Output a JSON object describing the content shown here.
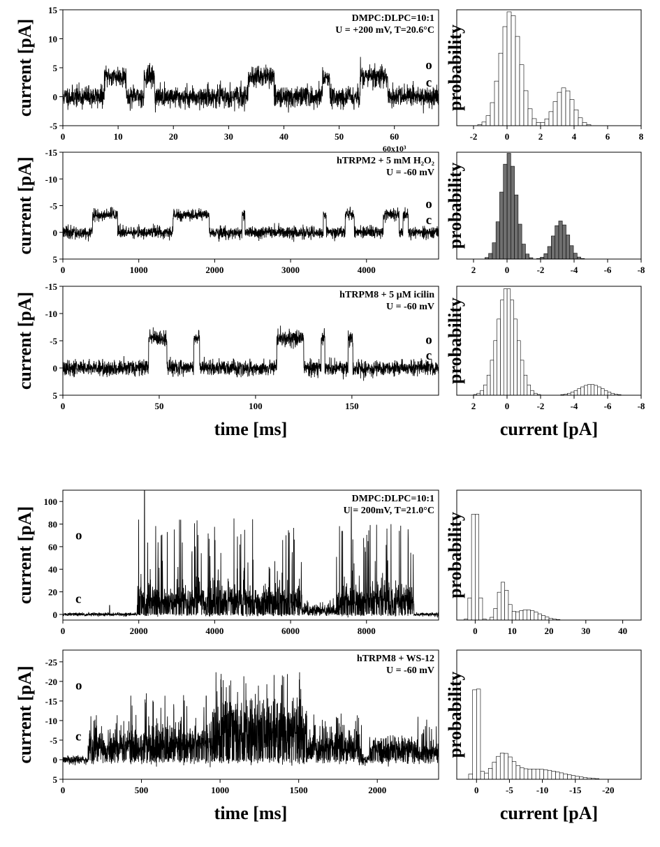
{
  "chart_data": [
    {
      "type": "line",
      "panel": "trace-dmpc-1",
      "annotation": [
        "DMPC:DLPC=10:1",
        "U = +200 mV, T=20.6°C"
      ],
      "ylabel": "current [pA]",
      "xlabel": "",
      "xlim": [
        0,
        68000
      ],
      "ylim": [
        -5,
        15
      ],
      "y_inverted": false,
      "x_ticks": [
        0,
        10,
        20,
        30,
        40,
        50,
        60
      ],
      "x_tick_labels": [
        "0",
        "10",
        "20",
        "30",
        "40",
        "50",
        "60"
      ],
      "x_multiplier": "60x10³",
      "y_ticks": [
        -5,
        0,
        5,
        10,
        15
      ],
      "y_tick_labels": [
        "-5",
        "0",
        "5",
        "10",
        "15"
      ],
      "open_level": 3.5,
      "closed_level": 0,
      "noise": 0.9,
      "open_intervals": [
        [
          7500,
          11500
        ],
        [
          14700,
          16600
        ],
        [
          33500,
          38200
        ],
        [
          47000,
          48300
        ],
        [
          53800,
          58800
        ]
      ],
      "state_labels": {
        "open": "o",
        "closed": "c"
      },
      "state_label_values": {
        "open": 5.5,
        "closed": 2.5
      },
      "seed": 11
    },
    {
      "type": "bar",
      "panel": "hist-dmpc-1",
      "ylabel": "probability",
      "xlabel": "",
      "xlim": [
        -3,
        8
      ],
      "ylim": [
        0,
        1
      ],
      "x_ticks": [
        -2,
        0,
        2,
        4,
        6,
        8
      ],
      "x_tick_labels": [
        "-2",
        "0",
        "2",
        "4",
        "6",
        "8"
      ],
      "style": "open",
      "bin_width": 0.25,
      "peaks": [
        {
          "center": 0.2,
          "sigma": 0.6,
          "height": 1.0
        },
        {
          "center": 3.4,
          "sigma": 0.55,
          "height": 0.33
        }
      ]
    },
    {
      "type": "line",
      "panel": "trace-htrpm2",
      "annotation": [
        "hTRPM2 + 5 mM H₂O₂",
        "U = -60 mV"
      ],
      "ylabel": "current [pA]",
      "xlabel": "",
      "xlim": [
        0,
        4950
      ],
      "ylim": [
        -15,
        5
      ],
      "y_inverted": true,
      "x_ticks": [
        0,
        1000,
        2000,
        3000,
        4000
      ],
      "x_tick_labels": [
        "0",
        "1000",
        "2000",
        "3000",
        "4000"
      ],
      "y_ticks": [
        -15,
        -10,
        -5,
        0,
        5
      ],
      "y_tick_labels": [
        "-15",
        "-10",
        "-5",
        "0",
        "5"
      ],
      "open_level": -3.3,
      "closed_level": 0,
      "noise": 0.55,
      "open_intervals": [
        [
          390,
          720
        ],
        [
          1450,
          1930
        ],
        [
          2360,
          2400
        ],
        [
          3430,
          3470
        ],
        [
          3720,
          3840
        ],
        [
          4220,
          4430
        ],
        [
          4480,
          4550
        ]
      ],
      "state_labels": {
        "open": "o",
        "closed": "c"
      },
      "state_label_values": {
        "open": -5.3,
        "closed": -2.3
      },
      "seed": 23
    },
    {
      "type": "bar",
      "panel": "hist-htrpm2",
      "ylabel": "probability",
      "xlabel": "",
      "xlim": [
        3,
        -8
      ],
      "ylim": [
        0,
        1
      ],
      "x_ticks": [
        2,
        0,
        -2,
        -4,
        -6,
        -8
      ],
      "x_tick_labels": [
        "2",
        "0",
        "-2",
        "-4",
        "-6",
        "-8"
      ],
      "style": "dark",
      "bin_width": 0.22,
      "peaks": [
        {
          "center": -0.1,
          "sigma": 0.45,
          "height": 1.0
        },
        {
          "center": -3.2,
          "sigma": 0.45,
          "height": 0.36
        }
      ]
    },
    {
      "type": "line",
      "panel": "trace-htrpm8-icilin",
      "annotation": [
        "hTRPM8 + 5 µM icilin",
        "U = -60 mV"
      ],
      "ylabel": "current [pA]",
      "xlabel": "time [ms]",
      "xlim": [
        0,
        195
      ],
      "ylim": [
        -15,
        5
      ],
      "y_inverted": true,
      "x_ticks": [
        0,
        50,
        100,
        150
      ],
      "x_tick_labels": [
        "0",
        "50",
        "100",
        "150"
      ],
      "y_ticks": [
        -15,
        -10,
        -5,
        0,
        5
      ],
      "y_tick_labels": [
        "-15",
        "-10",
        "-5",
        "0",
        "5"
      ],
      "open_level": -5.5,
      "closed_level": 0,
      "noise": 0.7,
      "open_intervals": [
        [
          44.5,
          54
        ],
        [
          68,
          71
        ],
        [
          111,
          125
        ],
        [
          134,
          136
        ],
        [
          148,
          150.5
        ]
      ],
      "state_labels": {
        "open": "o",
        "closed": "c"
      },
      "state_label_values": {
        "open": -5.2,
        "closed": -2.3
      },
      "seed": 37
    },
    {
      "type": "bar",
      "panel": "hist-htrpm8-icilin",
      "ylabel": "probability",
      "xlabel": "current [pA]",
      "xlim": [
        3,
        -8
      ],
      "ylim": [
        0,
        1
      ],
      "x_ticks": [
        2,
        0,
        -2,
        -4,
        -6,
        -8
      ],
      "x_tick_labels": [
        "2",
        "0",
        "-2",
        "-4",
        "-6",
        "-8"
      ],
      "style": "open",
      "bin_width": 0.2,
      "peaks": [
        {
          "center": 0.0,
          "sigma": 0.6,
          "height": 1.0
        },
        {
          "center": -5.0,
          "sigma": 0.7,
          "height": 0.1
        }
      ]
    },
    {
      "type": "line",
      "panel": "trace-dmpc-2",
      "annotation": [
        "DMPC:DLPC=10:1",
        "U = 200mV, T=21.0°C"
      ],
      "ylabel": "current [pA]",
      "xlabel": "",
      "xlim": [
        0,
        9900
      ],
      "ylim": [
        -5,
        110
      ],
      "y_inverted": false,
      "x_ticks": [
        0,
        2000,
        4000,
        6000,
        8000
      ],
      "x_tick_labels": [
        "0",
        "2000",
        "4000",
        "6000",
        "8000"
      ],
      "y_ticks": [
        0,
        20,
        40,
        60,
        80,
        100
      ],
      "y_tick_labels": [
        "0",
        "20",
        "40",
        "60",
        "80",
        "100"
      ],
      "mode": "bursty",
      "baseline": 0,
      "noise": 0.8,
      "bursts": [
        {
          "from": 1950,
          "to": 6300,
          "mean": 12,
          "spread": 14,
          "spike_max": 85
        },
        {
          "from": 6300,
          "to": 7200,
          "mean": 3,
          "spread": 5,
          "spike_max": 15
        },
        {
          "from": 7200,
          "to": 9250,
          "mean": 12,
          "spread": 14,
          "spike_max": 80
        }
      ],
      "single_spikes": [
        [
          1230,
          8
        ],
        [
          2150,
          110
        ],
        [
          7600,
          95
        ]
      ],
      "state_labels": {
        "open": "o",
        "closed": "c"
      },
      "state_label_values": {
        "open": 70,
        "closed": 14
      },
      "seed": 51
    },
    {
      "type": "bar",
      "panel": "hist-dmpc-2",
      "ylabel": "probability",
      "xlabel": "",
      "xlim": [
        -5,
        45
      ],
      "ylim": [
        0,
        1
      ],
      "x_ticks": [
        0,
        10,
        20,
        30,
        40
      ],
      "x_tick_labels": [
        "0",
        "10",
        "20",
        "30",
        "40"
      ],
      "style": "open",
      "bin_width": 1.0,
      "peaks": [
        {
          "center": 0.0,
          "sigma": 0.8,
          "height": 1.0
        },
        {
          "center": 7.5,
          "sigma": 1.3,
          "height": 0.28
        },
        {
          "center": 14,
          "sigma": 3.5,
          "height": 0.08
        }
      ]
    },
    {
      "type": "line",
      "panel": "trace-htrpm8-ws12",
      "annotation": [
        "hTRPM8 + WS-12",
        "U = -60 mV"
      ],
      "ylabel": "current [pA]",
      "xlabel": "time [ms]",
      "xlim": [
        0,
        2390
      ],
      "ylim": [
        -28,
        5
      ],
      "y_inverted": true,
      "x_ticks": [
        0,
        500,
        1000,
        1500,
        2000
      ],
      "x_tick_labels": [
        "0",
        "500",
        "1000",
        "1500",
        "2000"
      ],
      "y_ticks": [
        -25,
        -20,
        -15,
        -10,
        -5,
        0,
        5
      ],
      "y_tick_labels": [
        "-25",
        "-20",
        "-15",
        "-10",
        "-5",
        "0",
        "5"
      ],
      "mode": "bursty",
      "baseline": 0,
      "noise": 0.6,
      "bursts": [
        {
          "from": 160,
          "to": 420,
          "mean": -3,
          "spread": 4,
          "spike_max": -12
        },
        {
          "from": 420,
          "to": 950,
          "mean": -4,
          "spread": 5,
          "spike_max": -17
        },
        {
          "from": 950,
          "to": 1550,
          "mean": -10,
          "spread": 6,
          "spike_max": -23
        },
        {
          "from": 1550,
          "to": 1900,
          "mean": -3,
          "spread": 4,
          "spike_max": -12
        },
        {
          "from": 1950,
          "to": 2240,
          "mean": -3,
          "spread": 3,
          "spike_max": -6
        },
        {
          "from": 2240,
          "to": 2390,
          "mean": -1,
          "spread": 3,
          "spike_max": -12
        }
      ],
      "single_spikes": [],
      "state_labels": {
        "open": "o",
        "closed": "c"
      },
      "state_label_values": {
        "open": -19,
        "closed": -6
      },
      "seed": 77
    },
    {
      "type": "bar",
      "panel": "hist-htrpm8-ws12",
      "ylabel": "probability",
      "xlabel": "current [pA]",
      "xlim": [
        3,
        -25
      ],
      "ylim": [
        0,
        1
      ],
      "x_ticks": [
        0,
        -5,
        -10,
        -15,
        -20
      ],
      "x_tick_labels": [
        "0",
        "-5",
        "-10",
        "-15",
        "-20"
      ],
      "style": "open",
      "bin_width": 0.6,
      "peaks": [
        {
          "center": 0.0,
          "sigma": 0.35,
          "height": 1.0
        },
        {
          "center": -4.0,
          "sigma": 1.4,
          "height": 0.17
        },
        {
          "center": -9,
          "sigma": 4.0,
          "height": 0.08
        }
      ]
    }
  ]
}
